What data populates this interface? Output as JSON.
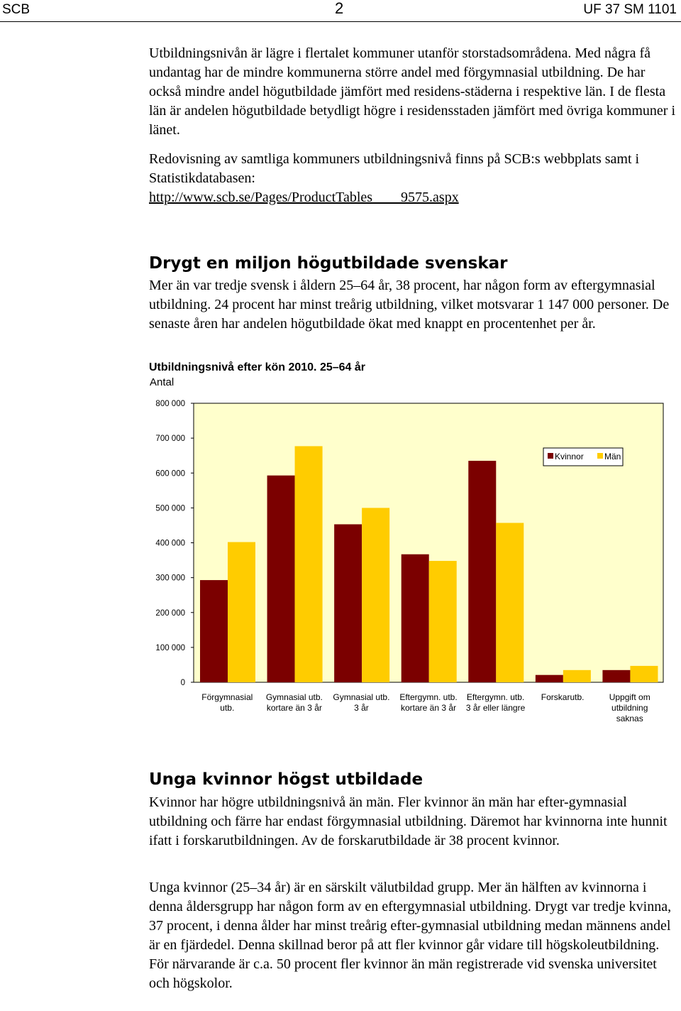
{
  "header": {
    "org": "SCB",
    "page": "2",
    "doc_code": "UF 37 SM 1101"
  },
  "intro": {
    "p1": "Utbildningsnivån är lägre i flertalet kommuner utanför storstadsområdena. Med några få undantag har de mindre kommunerna större andel med förgymnasial utbildning. De har också mindre andel högutbildade jämfört med residens-städerna i respektive län. I de flesta län är andelen högutbildade betydligt högre i residensstaden jämfört med övriga kommuner i länet.",
    "p2": "Redovisning av samtliga kommuners utbildningsnivå finns på SCB:s webbplats samt i Statistikdatabasen:",
    "link": "http://www.scb.se/Pages/ProductTables____9575.aspx"
  },
  "section1": {
    "heading": "Drygt en miljon högutbildade svenskar",
    "p1": "Mer än var tredje svensk i åldern 25–64 år, 38 procent, har någon form av eftergymnasial utbildning. 24 procent har minst treårig utbildning, vilket motsvarar 1 147 000 personer. De senaste åren har andelen högutbildade ökat med knappt en procentenhet per år."
  },
  "chart_data": {
    "type": "bar",
    "title": "Utbildningsnivå efter kön 2010. 25–64 år",
    "ylabel": "Antal",
    "ylim": [
      0,
      800000
    ],
    "yticks": [
      0,
      100000,
      200000,
      300000,
      400000,
      500000,
      600000,
      700000,
      800000
    ],
    "ytick_labels": [
      "0",
      "100 000",
      "200 000",
      "300 000",
      "400 000",
      "500 000",
      "600 000",
      "700 000",
      "800 000"
    ],
    "categories": [
      [
        "Förgymnasial",
        "utb."
      ],
      [
        "Gymnasial utb.",
        "kortare än 3 år"
      ],
      [
        "Gymnasial utb.",
        "3 år"
      ],
      [
        "Eftergymn. utb.",
        "kortare än 3 år"
      ],
      [
        "Eftergymn. utb.",
        "3 år eller längre"
      ],
      [
        "Forskarutb."
      ],
      [
        "Uppgift om",
        "utbildning",
        "saknas"
      ]
    ],
    "series": [
      {
        "name": "Kvinnor",
        "color": "#7b0000",
        "values": [
          293000,
          593000,
          453000,
          367000,
          635000,
          21000,
          35000
        ]
      },
      {
        "name": "Män",
        "color": "#ffcc00",
        "values": [
          402000,
          677000,
          500000,
          348000,
          457000,
          35000,
          47000
        ]
      }
    ],
    "plot_background": "#ffffcc",
    "grid": false,
    "legend_position": "top-right"
  },
  "section2": {
    "heading": "Unga kvinnor högst utbildade",
    "p1": "Kvinnor har högre utbildningsnivå än män. Fler kvinnor än män har efter-gymnasial utbildning och färre har endast förgymnasial utbildning. Däremot har kvinnorna inte hunnit ifatt i forskarutbildningen. Av de forskarutbildade är 38 procent kvinnor.",
    "p2": "Unga kvinnor (25–34 år) är en särskilt välutbildad grupp. Mer än hälften av kvinnorna i denna åldersgrupp har någon form av en eftergymnasial utbildning. Drygt var tredje kvinna, 37 procent, i denna ålder har minst treårig efter-gymnasial utbildning medan männens andel är en fjärdedel. Denna skillnad beror på att fler kvinnor går vidare till högskoleutbildning. För närvarande är c.a. 50 procent fler kvinnor än män registrerade vid svenska universitet och högskolor."
  }
}
